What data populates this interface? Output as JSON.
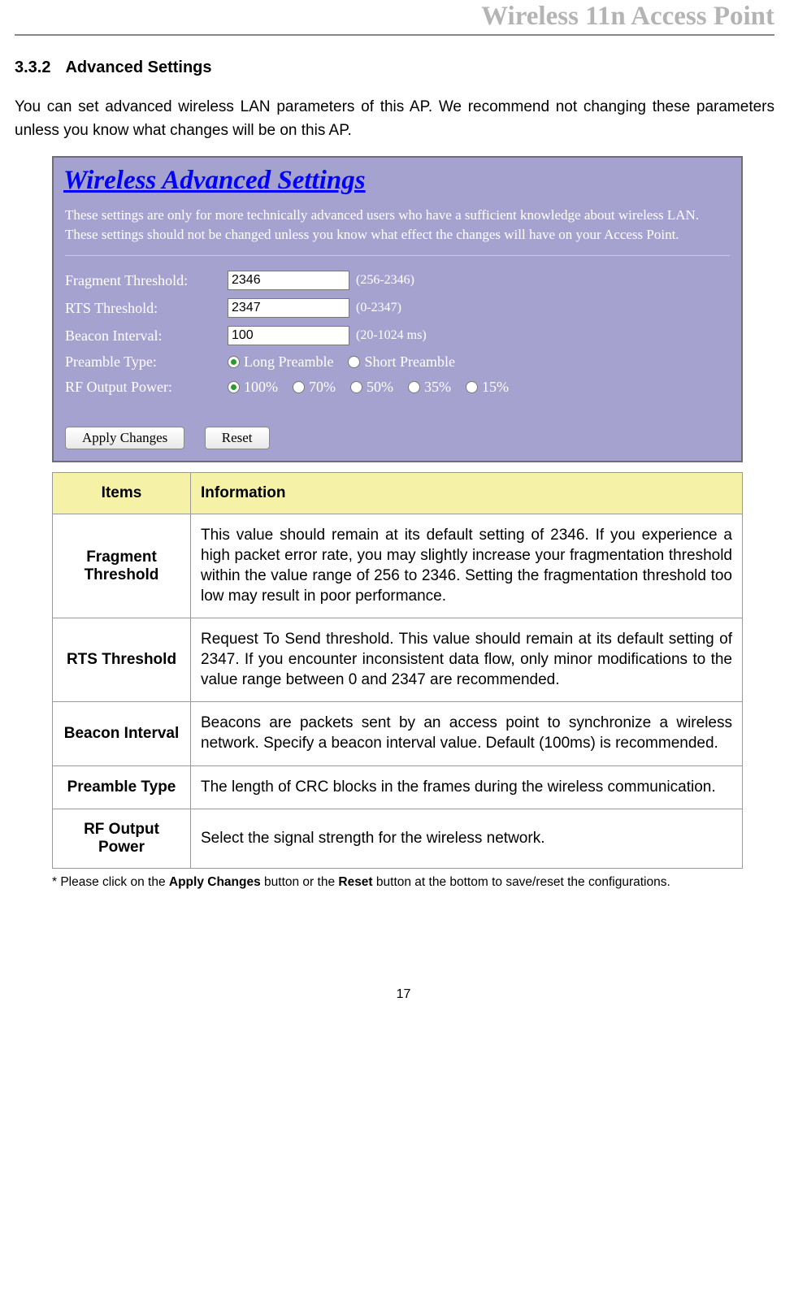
{
  "header": {
    "title": "Wireless 11n Access Point"
  },
  "section": {
    "number": "3.3.2",
    "title": "Advanced Settings",
    "intro": "You can set advanced wireless LAN parameters of this AP. We recommend not changing these parameters unless you know what changes will be on this AP."
  },
  "shot": {
    "title": "Wireless Advanced Settings",
    "desc": "These settings are only for more technically advanced users who have a sufficient knowledge about wireless LAN. These settings should not be changed unless you know what effect the changes will have on your Access Point.",
    "fields": {
      "fragment": {
        "label": "Fragment Threshold:",
        "value": "2346",
        "hint": "(256-2346)"
      },
      "rts": {
        "label": "RTS Threshold:",
        "value": "2347",
        "hint": "(0-2347)"
      },
      "beacon": {
        "label": "Beacon Interval:",
        "value": "100",
        "hint": "(20-1024 ms)"
      },
      "preamble": {
        "label": "Preamble Type:",
        "options": [
          "Long Preamble",
          "Short Preamble"
        ],
        "selected": 0
      },
      "rfpower": {
        "label": "RF Output Power:",
        "options": [
          "100%",
          "70%",
          "50%",
          "35%",
          "15%"
        ],
        "selected": 0
      }
    },
    "buttons": {
      "apply": "Apply Changes",
      "reset": "Reset"
    }
  },
  "table": {
    "columns": [
      "Items",
      "Information"
    ],
    "rows": [
      {
        "item": "Fragment Threshold",
        "info": "This value should remain at its default setting of 2346. If you experience a high packet error rate, you may slightly increase your fragmentation threshold within the value range of 256 to 2346. Setting the fragmentation threshold too low may result in poor performance."
      },
      {
        "item": "RTS Threshold",
        "info": "Request To Send threshold. This value should remain at its default setting of 2347. If you encounter inconsistent data flow, only minor modifications to the value range between 0 and 2347 are recommended."
      },
      {
        "item": "Beacon Interval",
        "info": "Beacons are packets sent by an access point to synchronize a wireless network. Specify a beacon interval value. Default (100ms) is recommended."
      },
      {
        "item": "Preamble Type",
        "info": "The length of CRC blocks in the frames during the wireless communication."
      },
      {
        "item": "RF Output Power",
        "info": "Select the signal strength for the wireless network."
      }
    ],
    "header_bg": "#f5f2a8",
    "border_color": "#999999"
  },
  "footnote": {
    "prefix": "* Please click on the ",
    "b1": "Apply Changes",
    "mid": " button or the ",
    "b2": "Reset",
    "suffix": " button at the bottom to save/reset the configurations."
  },
  "page_number": "17",
  "colors": {
    "header_text": "#b4b4b4",
    "shot_bg": "#a6a2cf",
    "shot_title": "#0000ff",
    "shot_text": "#ffffff"
  }
}
